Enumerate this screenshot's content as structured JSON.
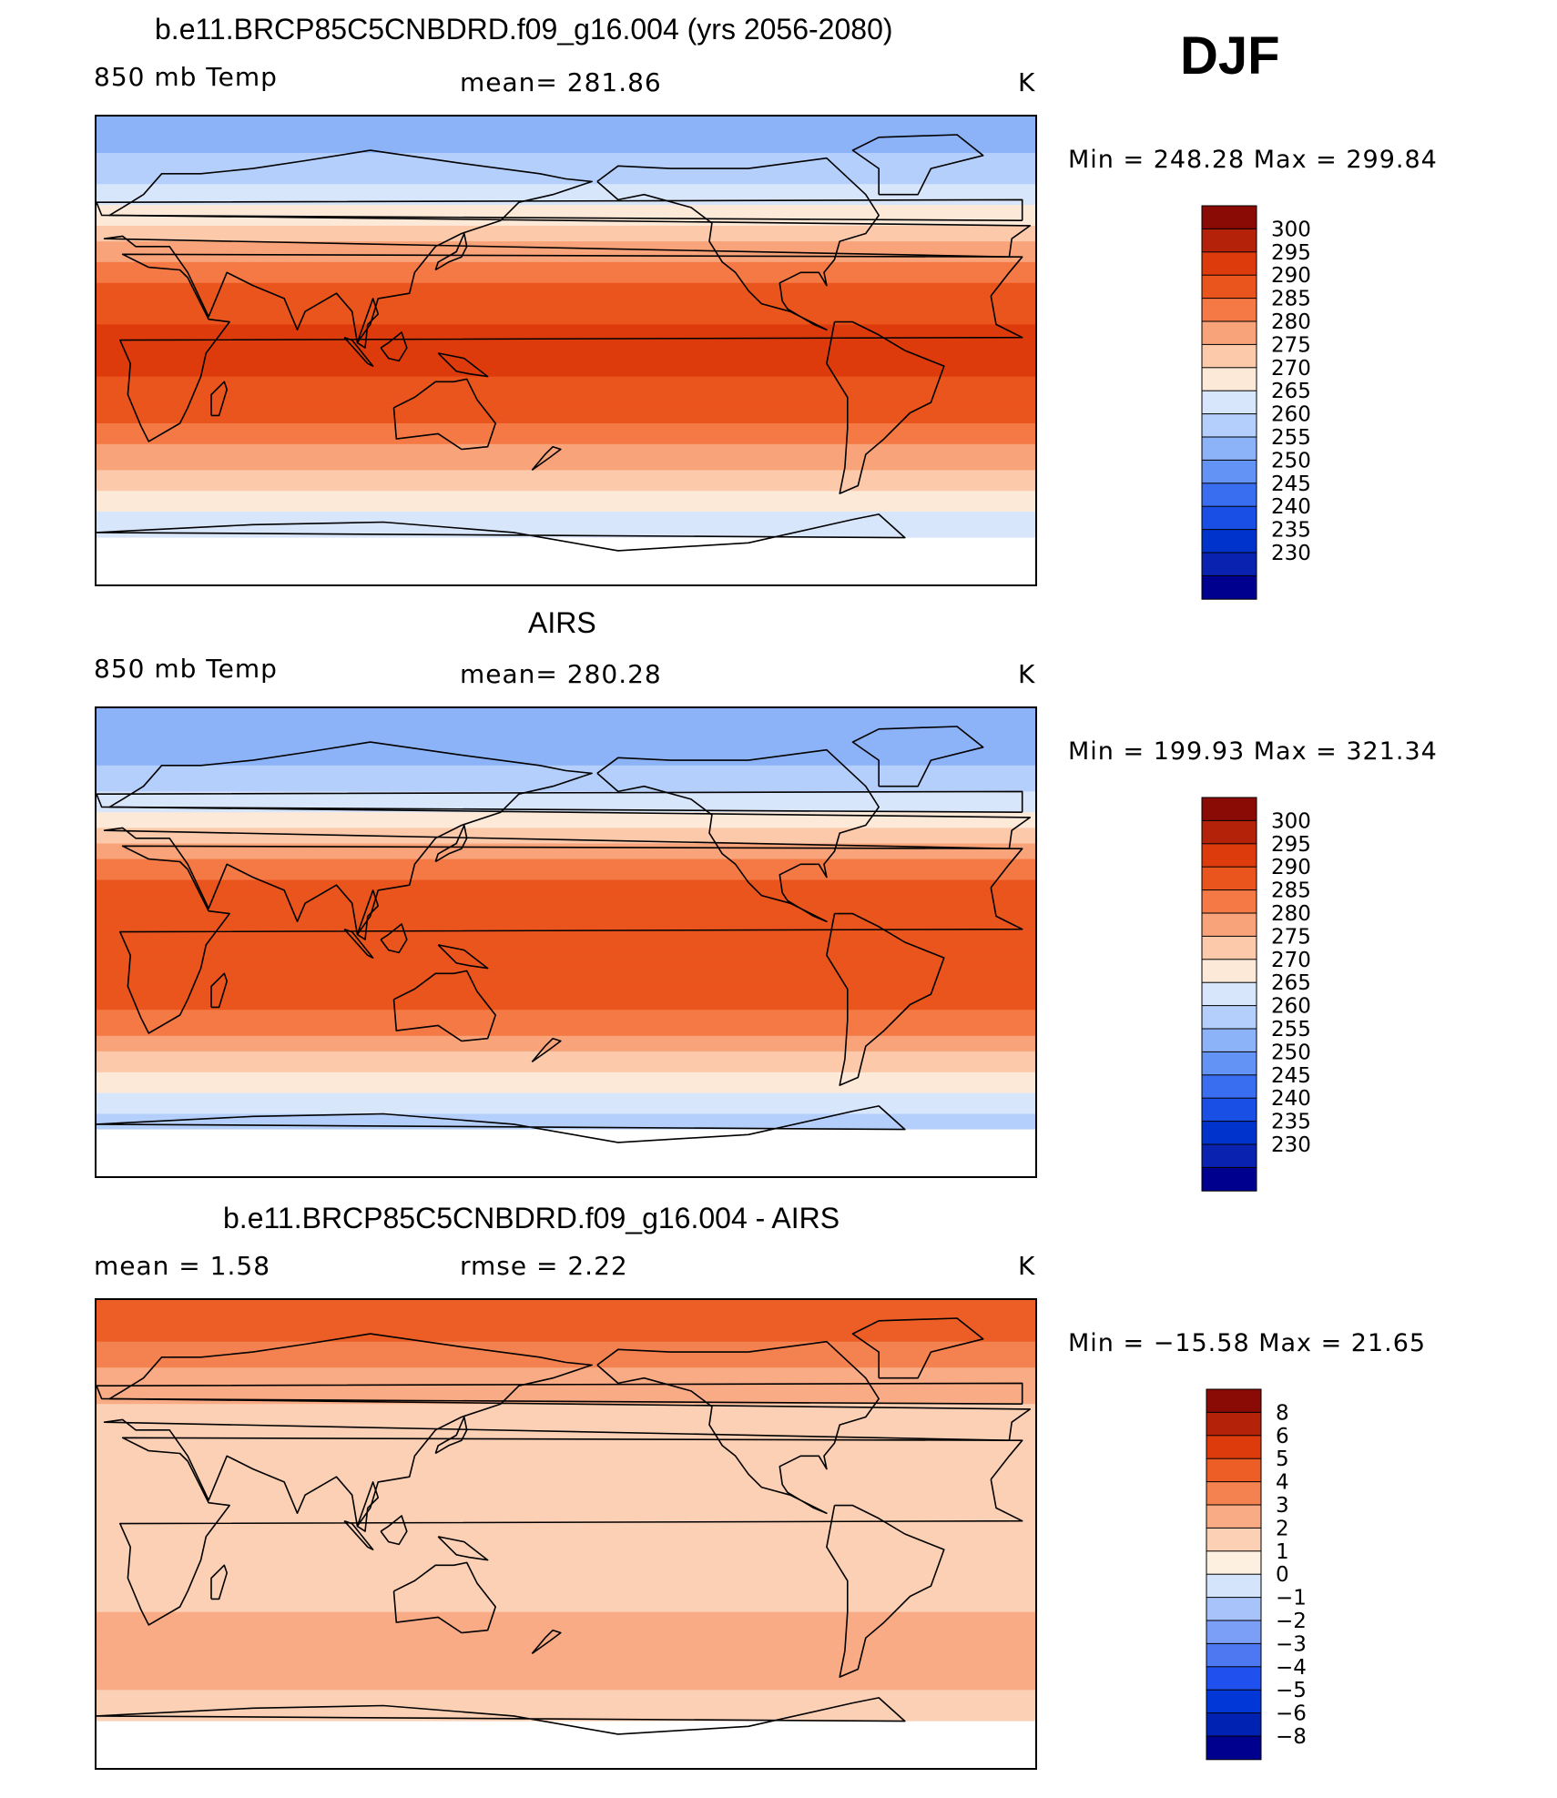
{
  "season": "DJF",
  "panels": [
    {
      "title": "b.e11.BRCP85C5CNBDRD.f09_g16.004 (yrs 2056-2080)",
      "left_label": "850 mb Temp",
      "center_label": "mean=  281.86",
      "units": "K",
      "minmax": "Min  =  248.28  Max  =  299.84"
    },
    {
      "title": "AIRS",
      "left_label": "850 mb Temp",
      "center_label": "mean=  280.28",
      "units": "K",
      "minmax": "Min  =  199.93  Max  =  321.34"
    },
    {
      "title": "b.e11.BRCP85C5CNBDRD.f09_g16.004 - AIRS",
      "left_label": "mean  =    1.58",
      "center_label": "rmse  =    2.22",
      "units": "K",
      "minmax": "Min  =  −15.58  Max  =    21.65"
    }
  ],
  "colors": {
    "temp_scale": [
      "#00008f",
      "#0a22b0",
      "#0033cc",
      "#1a4fe6",
      "#3a6ef0",
      "#6394f5",
      "#8cb2f8",
      "#b4cffb",
      "#d8e6fb",
      "#fde9d8",
      "#fcc9aa",
      "#f9a37a",
      "#f47944",
      "#ea541d",
      "#de3b0c",
      "#b5220a",
      "#8a0a05"
    ],
    "diff_scale": [
      "#00008f",
      "#0022b3",
      "#0037d6",
      "#2050ee",
      "#4e78f2",
      "#7b9ff6",
      "#a7c3f9",
      "#d4e4fb",
      "#fdf0e0",
      "#fcd0b4",
      "#f9ab85",
      "#f48250",
      "#ec5e26",
      "#de3b0c",
      "#b5220a",
      "#8a0a05"
    ],
    "land_outline": "#000000"
  },
  "chart_data": [
    {
      "type": "heatmap",
      "title": "b.e11.BRCP85C5CNBDRD.f09_g16.004 (yrs 2056-2080)",
      "variable": "850 mb Temp",
      "units": "K",
      "mean": 281.86,
      "min": 248.28,
      "max": 299.84,
      "colorbar_levels": [
        300,
        295,
        290,
        285,
        280,
        275,
        270,
        265,
        260,
        255,
        250,
        245,
        240,
        235,
        230
      ],
      "colorbar_labels": [
        "300",
        "295",
        "290",
        "285",
        "280",
        "275",
        "270",
        "265",
        "260",
        "255",
        "250",
        "245",
        "240",
        "235",
        "230"
      ],
      "x_range_lon": [
        -180,
        180
      ],
      "y_range_lat": [
        -90,
        90
      ],
      "zonal_profile": {
        "lat": [
          80,
          70,
          60,
          50,
          40,
          30,
          20,
          10,
          0,
          -10,
          -20,
          -30,
          -40,
          -50,
          -60,
          -70
        ],
        "value": [
          254,
          257,
          262,
          268,
          276,
          283,
          288,
          290,
          291,
          290,
          288,
          284,
          278,
          272,
          266,
          261
        ]
      }
    },
    {
      "type": "heatmap",
      "title": "AIRS",
      "variable": "850 mb Temp",
      "units": "K",
      "mean": 280.28,
      "min": 199.93,
      "max": 321.34,
      "colorbar_levels": [
        300,
        295,
        290,
        285,
        280,
        275,
        270,
        265,
        260,
        255,
        250,
        245,
        240,
        235,
        230
      ],
      "colorbar_labels": [
        "300",
        "295",
        "290",
        "285",
        "280",
        "275",
        "270",
        "265",
        "260",
        "255",
        "250",
        "245",
        "240",
        "235",
        "230"
      ],
      "x_range_lon": [
        -180,
        180
      ],
      "y_range_lat": [
        -90,
        90
      ],
      "zonal_profile": {
        "lat": [
          80,
          70,
          60,
          50,
          40,
          30,
          20,
          10,
          0,
          -10,
          -20,
          -30,
          -40,
          -50,
          -60,
          -70
        ],
        "value": [
          251,
          254,
          258,
          265,
          274,
          282,
          287,
          289,
          290,
          289,
          287,
          283,
          277,
          270,
          264,
          258
        ]
      }
    },
    {
      "type": "heatmap",
      "title": "b.e11.BRCP85C5CNBDRD.f09_g16.004 - AIRS",
      "variable": "difference",
      "units": "K",
      "mean": 1.58,
      "rmse": 2.22,
      "min": -15.58,
      "max": 21.65,
      "colorbar_levels": [
        8,
        6,
        5,
        4,
        3,
        2,
        1,
        0,
        -1,
        -2,
        -3,
        -4,
        -5,
        -6,
        -8
      ],
      "colorbar_labels": [
        "8",
        "6",
        "5",
        "4",
        "3",
        "2",
        "1",
        "0",
        "−1",
        "−2",
        "−3",
        "−4",
        "−5",
        "−6",
        "−8"
      ],
      "x_range_lon": [
        -180,
        180
      ],
      "y_range_lat": [
        -90,
        90
      ],
      "zonal_profile": {
        "lat": [
          80,
          70,
          60,
          50,
          40,
          30,
          20,
          10,
          0,
          -10,
          -20,
          -30,
          -40,
          -50,
          -60,
          -70
        ],
        "value": [
          4.5,
          3.5,
          2.5,
          2.0,
          1.5,
          1.2,
          1.0,
          1.0,
          1.2,
          1.5,
          1.8,
          2.0,
          2.5,
          3.0,
          2.0,
          1.0
        ]
      }
    }
  ]
}
